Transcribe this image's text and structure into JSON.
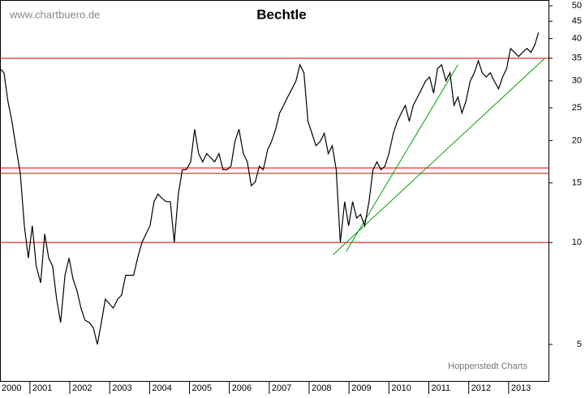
{
  "chart_data": {
    "type": "line",
    "title": "Bechtle",
    "watermark": "www.chartbuero.de",
    "source": "Hoppenstedt Charts",
    "log_y": true,
    "xlim": [
      2000.25,
      2014
    ],
    "xticks": [
      2000,
      2001,
      2002,
      2003,
      2004,
      2005,
      2006,
      2007,
      2008,
      2009,
      2010,
      2011,
      2012,
      2013
    ],
    "ylim": [
      3.9,
      52
    ],
    "yticks": [
      5,
      10,
      15,
      20,
      25,
      30,
      35,
      40,
      45,
      50
    ],
    "series": [
      {
        "color": "#000000",
        "x": [
          2000.25,
          2000.35,
          2000.45,
          2000.55,
          2000.66,
          2000.76,
          2000.86,
          2000.96,
          2001.06,
          2001.16,
          2001.27,
          2001.37,
          2001.47,
          2001.57,
          2001.67,
          2001.77,
          2001.88,
          2001.98,
          2002.08,
          2002.18,
          2002.28,
          2002.38,
          2002.49,
          2002.59,
          2002.69,
          2002.79,
          2002.89,
          2002.99,
          2003.09,
          2003.2,
          2003.3,
          2003.4,
          2003.5,
          2003.6,
          2003.7,
          2003.81,
          2003.91,
          2004.01,
          2004.11,
          2004.21,
          2004.31,
          2004.42,
          2004.52,
          2004.62,
          2004.72,
          2004.82,
          2004.92,
          2005.03,
          2005.13,
          2005.23,
          2005.33,
          2005.43,
          2005.53,
          2005.63,
          2005.74,
          2005.84,
          2005.94,
          2006.04,
          2006.14,
          2006.24,
          2006.35,
          2006.45,
          2006.55,
          2006.65,
          2006.75,
          2006.85,
          2006.96,
          2007.06,
          2007.16,
          2007.26,
          2007.36,
          2007.46,
          2007.57,
          2007.67,
          2007.77,
          2007.87,
          2007.97,
          2008.07,
          2008.17,
          2008.28,
          2008.38,
          2008.48,
          2008.58,
          2008.68,
          2008.78,
          2008.89,
          2008.99,
          2009.09,
          2009.19,
          2009.29,
          2009.39,
          2009.5,
          2009.6,
          2009.7,
          2009.8,
          2009.9,
          2010.0,
          2010.11,
          2010.21,
          2010.31,
          2010.41,
          2010.51,
          2010.61,
          2010.72,
          2010.82,
          2010.92,
          2011.02,
          2011.12,
          2011.22,
          2011.32,
          2011.43,
          2011.53,
          2011.63,
          2011.73,
          2011.83,
          2011.93,
          2012.04,
          2012.14,
          2012.24,
          2012.34,
          2012.44,
          2012.54,
          2012.64,
          2012.75,
          2012.85,
          2012.95,
          2013.05,
          2013.15,
          2013.25,
          2013.35,
          2013.46,
          2013.56,
          2013.66,
          2013.75
        ],
        "values": [
          32.6,
          31.7,
          26.1,
          22.8,
          18.8,
          15.9,
          11.2,
          9.0,
          11.2,
          8.5,
          7.6,
          10.6,
          9.0,
          8.5,
          6.8,
          5.8,
          8.0,
          9.0,
          7.8,
          7.2,
          6.4,
          5.9,
          5.8,
          5.6,
          5.0,
          5.8,
          6.8,
          6.6,
          6.4,
          6.8,
          7.0,
          8.0,
          8.0,
          8.0,
          9.0,
          10.0,
          10.6,
          11.2,
          13.2,
          13.9,
          13.5,
          13.2,
          13.2,
          10.0,
          13.9,
          16.4,
          16.4,
          17.3,
          21.6,
          18.3,
          17.3,
          18.3,
          17.8,
          17.3,
          18.3,
          16.4,
          16.4,
          16.8,
          19.9,
          21.6,
          18.3,
          17.3,
          14.7,
          15.1,
          16.8,
          16.4,
          18.8,
          19.9,
          21.6,
          24.1,
          25.4,
          26.9,
          28.4,
          30.0,
          33.5,
          31.7,
          22.8,
          21.0,
          19.3,
          19.9,
          21.0,
          18.3,
          19.3,
          16.4,
          10.0,
          13.2,
          11.2,
          13.2,
          11.8,
          12.1,
          11.2,
          13.2,
          16.4,
          17.3,
          16.4,
          16.8,
          18.3,
          21.0,
          22.8,
          24.1,
          25.4,
          22.8,
          25.4,
          26.9,
          28.4,
          30.0,
          30.8,
          27.6,
          32.6,
          33.5,
          30.0,
          31.7,
          25.4,
          26.9,
          24.1,
          26.1,
          30.0,
          31.7,
          34.4,
          31.7,
          30.8,
          31.7,
          30.0,
          28.4,
          30.8,
          32.6,
          37.4,
          36.4,
          35.4,
          36.4,
          37.4,
          36.4,
          38.4,
          41.7
        ]
      }
    ],
    "hlines": [
      {
        "value": 35,
        "color": "#e00000"
      },
      {
        "value": 16.6,
        "color": "#e00000"
      },
      {
        "value": 16.0,
        "color": "#e00000"
      },
      {
        "value": 10,
        "color": "#e00000"
      }
    ],
    "trendlines": [
      {
        "x": [
          2008.93,
          2011.73
        ],
        "values": [
          9.4,
          33.5
        ],
        "color": "#00a000"
      },
      {
        "x": [
          2008.6,
          2013.91
        ],
        "values": [
          9.2,
          35
        ],
        "color": "#00a000"
      }
    ]
  }
}
